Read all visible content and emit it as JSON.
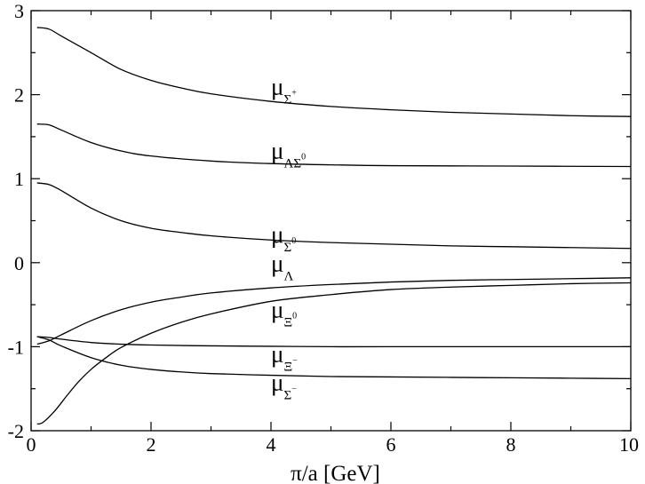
{
  "chart_data": {
    "type": "line",
    "title": "",
    "xlabel": "π/a [GeV]",
    "ylabel": "",
    "xlim": [
      0,
      10
    ],
    "ylim": [
      -2,
      3
    ],
    "grid": false,
    "x_ticks": [
      "0",
      "2",
      "4",
      "6",
      "8",
      "10"
    ],
    "y_ticks": [
      "-2",
      "-1",
      "0",
      "1",
      "2",
      "3"
    ],
    "series": [
      {
        "name": "μΣ+",
        "label": {
          "main": "μ",
          "sub": "Σ",
          "sup": "+"
        },
        "x": [
          0.1,
          0.3,
          0.5,
          1.0,
          1.5,
          2.0,
          2.5,
          3.0,
          4.0,
          5.0,
          6.0,
          7.0,
          8.0,
          9.0,
          10.0
        ],
        "values": [
          2.8,
          2.78,
          2.7,
          2.5,
          2.3,
          2.17,
          2.08,
          2.01,
          1.92,
          1.86,
          1.82,
          1.79,
          1.77,
          1.75,
          1.74
        ]
      },
      {
        "name": "μΛΣ0",
        "label": {
          "main": "μ",
          "sub": "ΛΣ",
          "sup": "0"
        },
        "x": [
          0.1,
          0.3,
          0.5,
          1.0,
          1.5,
          2.0,
          3.0,
          4.0,
          5.0,
          6.0,
          8.0,
          10.0
        ],
        "values": [
          1.65,
          1.64,
          1.58,
          1.43,
          1.33,
          1.27,
          1.21,
          1.18,
          1.165,
          1.155,
          1.15,
          1.145
        ]
      },
      {
        "name": "μΣ0",
        "label": {
          "main": "μ",
          "sub": "Σ",
          "sup": "0"
        },
        "x": [
          0.1,
          0.3,
          0.5,
          1.0,
          1.5,
          2.0,
          2.5,
          3.0,
          4.0,
          5.0,
          6.0,
          7.0,
          8.0,
          9.0,
          10.0
        ],
        "values": [
          0.95,
          0.93,
          0.86,
          0.65,
          0.5,
          0.41,
          0.36,
          0.32,
          0.27,
          0.24,
          0.22,
          0.2,
          0.19,
          0.18,
          0.17
        ]
      },
      {
        "name": "μΛ",
        "label": {
          "main": "μ",
          "sub": "Λ",
          "sup": ""
        },
        "x": [
          0.1,
          0.3,
          0.5,
          1.0,
          1.5,
          2.0,
          2.5,
          3.0,
          4.0,
          5.0,
          6.0,
          7.0,
          8.0,
          9.0,
          10.0
        ],
        "values": [
          -0.97,
          -0.93,
          -0.86,
          -0.69,
          -0.56,
          -0.47,
          -0.41,
          -0.36,
          -0.3,
          -0.26,
          -0.23,
          -0.21,
          -0.2,
          -0.19,
          -0.18
        ]
      },
      {
        "name": "μΞ0",
        "label": {
          "main": "μ",
          "sub": "Ξ",
          "sup": "0"
        },
        "x": [
          0.1,
          0.2,
          0.4,
          0.6,
          0.8,
          1.0,
          1.25,
          1.5,
          2.0,
          2.5,
          3.0,
          4.0,
          5.0,
          6.0,
          7.0,
          8.0,
          9.0,
          10.0
        ],
        "values": [
          -1.92,
          -1.9,
          -1.76,
          -1.58,
          -1.41,
          -1.27,
          -1.13,
          -1.01,
          -0.84,
          -0.71,
          -0.61,
          -0.46,
          -0.38,
          -0.32,
          -0.29,
          -0.27,
          -0.25,
          -0.24
        ]
      },
      {
        "name": "μΞ-",
        "label": {
          "main": "μ",
          "sub": "Ξ",
          "sup": "−"
        },
        "x": [
          0.1,
          0.3,
          0.5,
          1.0,
          1.5,
          2.0,
          3.0,
          4.0,
          5.0,
          6.0,
          8.0,
          10.0
        ],
        "values": [
          -0.88,
          -0.89,
          -0.91,
          -0.95,
          -0.97,
          -0.98,
          -0.99,
          -0.995,
          -1.0,
          -1.0,
          -1.0,
          -1.0
        ]
      },
      {
        "name": "μΣ-",
        "label": {
          "main": "μ",
          "sub": "Σ",
          "sup": "−"
        },
        "x": [
          0.1,
          0.3,
          0.5,
          1.0,
          1.5,
          2.0,
          2.5,
          3.0,
          4.0,
          5.0,
          6.0,
          7.0,
          8.0,
          9.0,
          10.0
        ],
        "values": [
          -0.88,
          -0.92,
          -0.99,
          -1.13,
          -1.22,
          -1.27,
          -1.3,
          -1.32,
          -1.34,
          -1.355,
          -1.36,
          -1.365,
          -1.37,
          -1.375,
          -1.38
        ]
      }
    ]
  }
}
